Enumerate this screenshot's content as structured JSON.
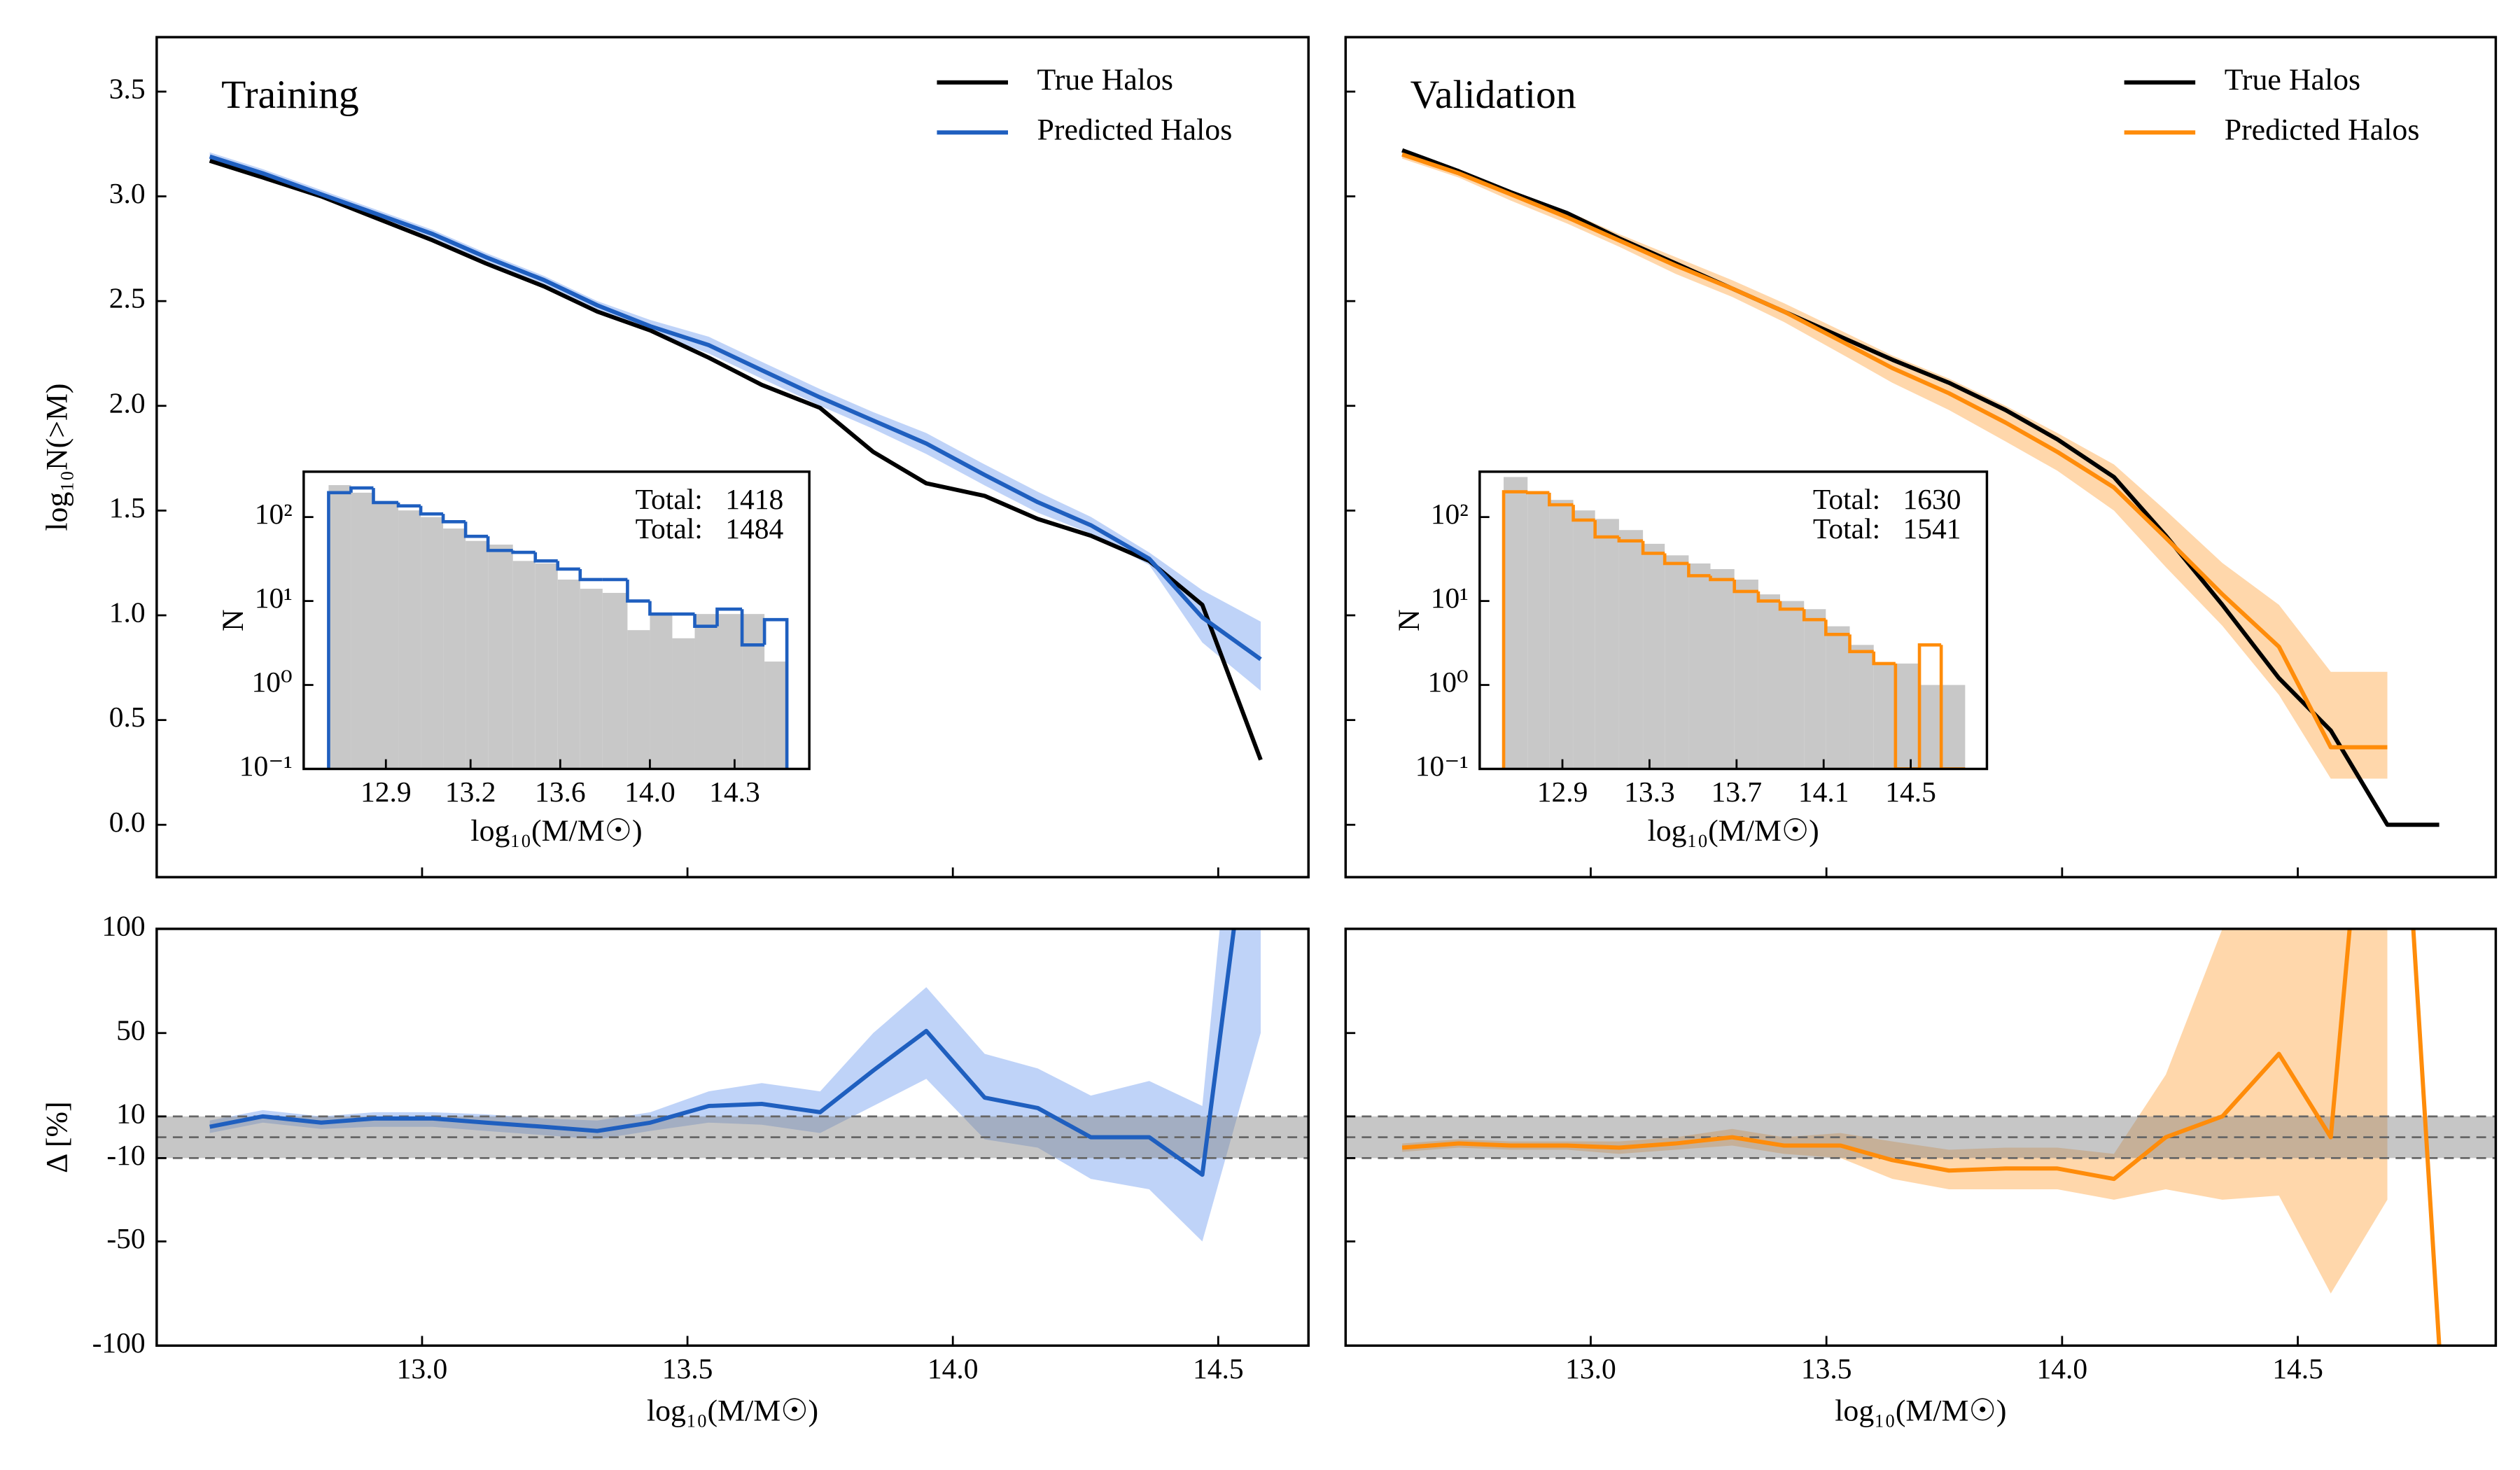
{
  "chart_data": [
    {
      "type": "line",
      "annotation": "Training",
      "legend": "upper right",
      "x": [
        12.6,
        12.7,
        12.81,
        12.91,
        13.02,
        13.12,
        13.23,
        13.33,
        13.43,
        13.54,
        13.64,
        13.75,
        13.85,
        13.95,
        14.06,
        14.16,
        14.26,
        14.37,
        14.47,
        14.58
      ],
      "series": [
        {
          "name": "True Halos",
          "color": "#000000",
          "values": [
            3.17,
            3.09,
            3.0,
            2.9,
            2.79,
            2.68,
            2.57,
            2.45,
            2.36,
            2.23,
            2.1,
            1.99,
            1.78,
            1.63,
            1.57,
            1.46,
            1.38,
            1.26,
            1.05,
            0.31
          ]
        },
        {
          "name": "Predicted Halos",
          "color": "#1f5fbf",
          "band_color": "#a9c4f5",
          "values": [
            3.19,
            3.11,
            3.01,
            2.92,
            2.82,
            2.71,
            2.6,
            2.48,
            2.38,
            2.29,
            2.17,
            2.04,
            1.93,
            1.82,
            1.67,
            1.54,
            1.43,
            1.27,
            0.99,
            0.79
          ],
          "band_lower": [
            3.17,
            3.09,
            2.99,
            2.9,
            2.8,
            2.69,
            2.58,
            2.46,
            2.35,
            2.25,
            2.13,
            2.0,
            1.89,
            1.77,
            1.62,
            1.49,
            1.39,
            1.24,
            0.87,
            0.64
          ],
          "band_upper": [
            3.21,
            3.13,
            3.03,
            2.94,
            2.84,
            2.73,
            2.62,
            2.5,
            2.41,
            2.33,
            2.21,
            2.08,
            1.97,
            1.87,
            1.72,
            1.59,
            1.47,
            1.3,
            1.12,
            0.97
          ]
        }
      ],
      "ylabel": "log₁₀N(>M)",
      "xlim": [
        12.5,
        14.67
      ],
      "xticks": [
        13,
        13.5,
        14,
        14.5
      ],
      "ylim": [
        -0.25,
        3.76
      ],
      "yticks": [
        {
          "value": 0,
          "label": "0.0"
        },
        0.5,
        {
          "value": 1,
          "label": "1.0"
        },
        1.5,
        {
          "value": 2,
          "label": "2.0"
        },
        2.5,
        {
          "value": 3,
          "label": "3.0"
        },
        3.5
      ]
    },
    {
      "type": "histogram",
      "xlabel": "log₁₀(M/M☉)",
      "ylabel": "N",
      "yscale": "log",
      "bins": [
        12.67,
        12.76,
        12.85,
        12.95,
        13.04,
        13.13,
        13.22,
        13.31,
        13.41,
        13.5,
        13.59,
        13.68,
        13.77,
        13.87,
        13.96,
        14.05,
        14.14,
        14.23,
        14.33,
        14.42,
        14.51
      ],
      "series": [
        {
          "histtype": "stepfilled",
          "color": "#c8c8c8",
          "text_color": "#000000",
          "total_label": "Total:",
          "total": 1418,
          "values": [
            240,
            195,
            155,
            120,
            100,
            73,
            52,
            47,
            30,
            28,
            18,
            14,
            12.5,
            4.5,
            7,
            3.6,
            7,
            7,
            7,
            1.9
          ]
        },
        {
          "histtype": "step",
          "color": "#1f5fbf",
          "text_color": "#1f5fbf",
          "total_label": "Total:",
          "total": 1484,
          "values": [
            195,
            222,
            149,
            136,
            109,
            88,
            59,
            40,
            38,
            30,
            24,
            18,
            18,
            10,
            7,
            7,
            5,
            8,
            3,
            6
          ]
        }
      ],
      "xlim": [
        12.57,
        14.6
      ],
      "xticks": [
        12.9,
        {
          "value": 13.24,
          "label": "13.2"
        },
        13.6,
        {
          "value": 13.96,
          "label": "14.0"
        },
        14.3
      ],
      "ylim": [
        0.1,
        347
      ],
      "yticks": [
        {
          "value": 0.1,
          "label": "10⁻¹"
        },
        {
          "value": 1,
          "label": "10⁰"
        },
        {
          "value": 10,
          "label": "10¹"
        },
        {
          "value": 100,
          "label": "10²"
        }
      ]
    },
    {
      "type": "line",
      "xlabel": "log₁₀(M/M☉)",
      "ylabel": "Δ [%]",
      "x": [
        12.6,
        12.7,
        12.81,
        12.91,
        13.02,
        13.12,
        13.23,
        13.33,
        13.43,
        13.54,
        13.64,
        13.75,
        13.85,
        13.95,
        14.06,
        14.16,
        14.26,
        14.37,
        14.47,
        14.58
      ],
      "reference_band": [
        -10,
        10
      ],
      "reference_lines": [
        -10,
        0,
        10
      ],
      "series": [
        {
          "color": "#1f5fbf",
          "band_color": "#a9c4f5",
          "values": [
            5,
            10,
            7,
            9,
            9,
            7,
            5,
            3,
            7,
            15,
            16,
            12,
            32,
            51,
            19,
            14,
            0,
            0,
            -18,
            200
          ],
          "band_lower": [
            2,
            7,
            4,
            5,
            5,
            3,
            1,
            -1,
            3,
            7,
            6,
            2,
            15,
            28,
            -1,
            -5,
            -20,
            -25,
            -50,
            50
          ],
          "band_upper": [
            8,
            13,
            10,
            12,
            12,
            11,
            9,
            8,
            12,
            22,
            26,
            22,
            50,
            72,
            40,
            33,
            20,
            27,
            15,
            300
          ]
        }
      ],
      "xlim": [
        12.5,
        14.67
      ],
      "xticks": [
        {
          "value": 13,
          "label": "13.0"
        },
        13.5,
        {
          "value": 14,
          "label": "14.0"
        },
        14.5
      ],
      "ylim": [
        -100,
        100
      ],
      "yticks": [
        100,
        50,
        10,
        -10,
        -50,
        -100
      ]
    },
    {
      "type": "line",
      "annotation": "Validation",
      "legend": "upper right",
      "x": [
        12.6,
        12.72,
        12.83,
        12.95,
        13.06,
        13.18,
        13.3,
        13.41,
        13.53,
        13.64,
        13.76,
        13.88,
        13.99,
        14.11,
        14.22,
        14.34,
        14.46,
        14.57,
        14.69,
        14.8
      ],
      "series": [
        {
          "name": "True Halos",
          "color": "#000000",
          "values": [
            3.22,
            3.12,
            3.02,
            2.92,
            2.8,
            2.68,
            2.56,
            2.45,
            2.33,
            2.22,
            2.11,
            1.98,
            1.84,
            1.66,
            1.38,
            1.05,
            0.7,
            0.45,
            0,
            0
          ]
        },
        {
          "name": "Predicted Halos",
          "color": "#ff8c0a",
          "band_color": "#ffc98f",
          "values": [
            3.2,
            3.11,
            3.01,
            2.9,
            2.79,
            2.67,
            2.56,
            2.45,
            2.31,
            2.18,
            2.06,
            1.92,
            1.78,
            1.61,
            1.37,
            1.1,
            0.85,
            0.37,
            0.37,
            null
          ],
          "band_lower": [
            3.18,
            3.09,
            2.98,
            2.87,
            2.76,
            2.63,
            2.52,
            2.4,
            2.25,
            2.11,
            1.98,
            1.83,
            1.69,
            1.5,
            1.23,
            0.95,
            0.62,
            0.22,
            0.22,
            null
          ],
          "band_upper": [
            3.22,
            3.13,
            3.03,
            2.93,
            2.82,
            2.71,
            2.6,
            2.49,
            2.36,
            2.24,
            2.13,
            2.0,
            1.87,
            1.72,
            1.5,
            1.25,
            1.05,
            0.73,
            0.73,
            null
          ]
        }
      ],
      "xlim": [
        12.48,
        14.92
      ],
      "xticks": [
        13,
        13.5,
        14,
        14.5
      ],
      "ylim": [
        -0.25,
        3.76
      ],
      "yticks": [
        0,
        0.5,
        1,
        1.5,
        2,
        2.5,
        3,
        3.5
      ]
    },
    {
      "type": "histogram",
      "xlabel": "log₁₀(M/M☉)",
      "ylabel": "N",
      "yscale": "log",
      "bins": [
        12.63,
        12.74,
        12.84,
        12.95,
        13.05,
        13.16,
        13.27,
        13.37,
        13.48,
        13.58,
        13.69,
        13.8,
        13.9,
        14.01,
        14.11,
        14.22,
        14.33,
        14.43,
        14.54,
        14.64,
        14.75
      ],
      "series": [
        {
          "histtype": "stepfilled",
          "color": "#c8c8c8",
          "text_color": "#000000",
          "total_label": "Total:",
          "total": 1630,
          "values": [
            300,
            200,
            160,
            120,
            95,
            70,
            48,
            35,
            28,
            24,
            18,
            12,
            10,
            8,
            5,
            3,
            1.8,
            1.8,
            1,
            1
          ]
        },
        {
          "histtype": "step",
          "color": "#ff8c0a",
          "text_color": "#ff8c0a",
          "total_label": "Total:",
          "total": 1541,
          "values": [
            200,
            195,
            140,
            92,
            58,
            52,
            37,
            28,
            20,
            18,
            13,
            10,
            8,
            6,
            4,
            2.5,
            1.8,
            0,
            3,
            0
          ]
        }
      ],
      "xlim": [
        12.52,
        14.85
      ],
      "xticks": [
        12.9,
        13.3,
        13.7,
        14.1,
        14.5
      ],
      "ylim": [
        0.1,
        347
      ],
      "yticks": [
        {
          "value": 0.1,
          "label": "10⁻¹"
        },
        {
          "value": 1,
          "label": "10⁰"
        },
        {
          "value": 10,
          "label": "10¹"
        },
        {
          "value": 100,
          "label": "10²"
        }
      ]
    },
    {
      "type": "line",
      "xlabel": "log₁₀(M/M☉)",
      "x": [
        12.6,
        12.72,
        12.83,
        12.95,
        13.06,
        13.18,
        13.3,
        13.41,
        13.53,
        13.64,
        13.76,
        13.88,
        13.99,
        14.11,
        14.22,
        14.34,
        14.46,
        14.57,
        14.69,
        14.8
      ],
      "reference_band": [
        -10,
        10
      ],
      "reference_lines": [
        -10,
        0,
        10
      ],
      "series": [
        {
          "color": "#ff8c0a",
          "band_color": "#ffc98f",
          "values": [
            -5,
            -3,
            -4,
            -4,
            -5,
            -3,
            0,
            -4,
            -4,
            -11,
            -16,
            -15,
            -15,
            -20,
            0,
            10,
            40,
            0,
            300,
            -100
          ],
          "band_lower": [
            -7,
            -5,
            -6,
            -6,
            -8,
            -6,
            -4,
            -8,
            -10,
            -20,
            -25,
            -25,
            -25,
            -30,
            -25,
            -30,
            -28,
            -75,
            -30,
            null
          ],
          "band_upper": [
            -3,
            -1,
            -2,
            -2,
            -2,
            0,
            4,
            0,
            2,
            -2,
            -6,
            -5,
            -5,
            -8,
            30,
            100,
            150,
            150,
            150,
            null
          ]
        }
      ],
      "xlim": [
        12.48,
        14.92
      ],
      "xticks": [
        {
          "value": 13,
          "label": "13.0"
        },
        13.5,
        {
          "value": 14,
          "label": "14.0"
        },
        14.5
      ],
      "ylim": [
        -100,
        100
      ],
      "yticks": [
        100,
        50,
        10,
        -10,
        -50,
        -100
      ]
    }
  ]
}
